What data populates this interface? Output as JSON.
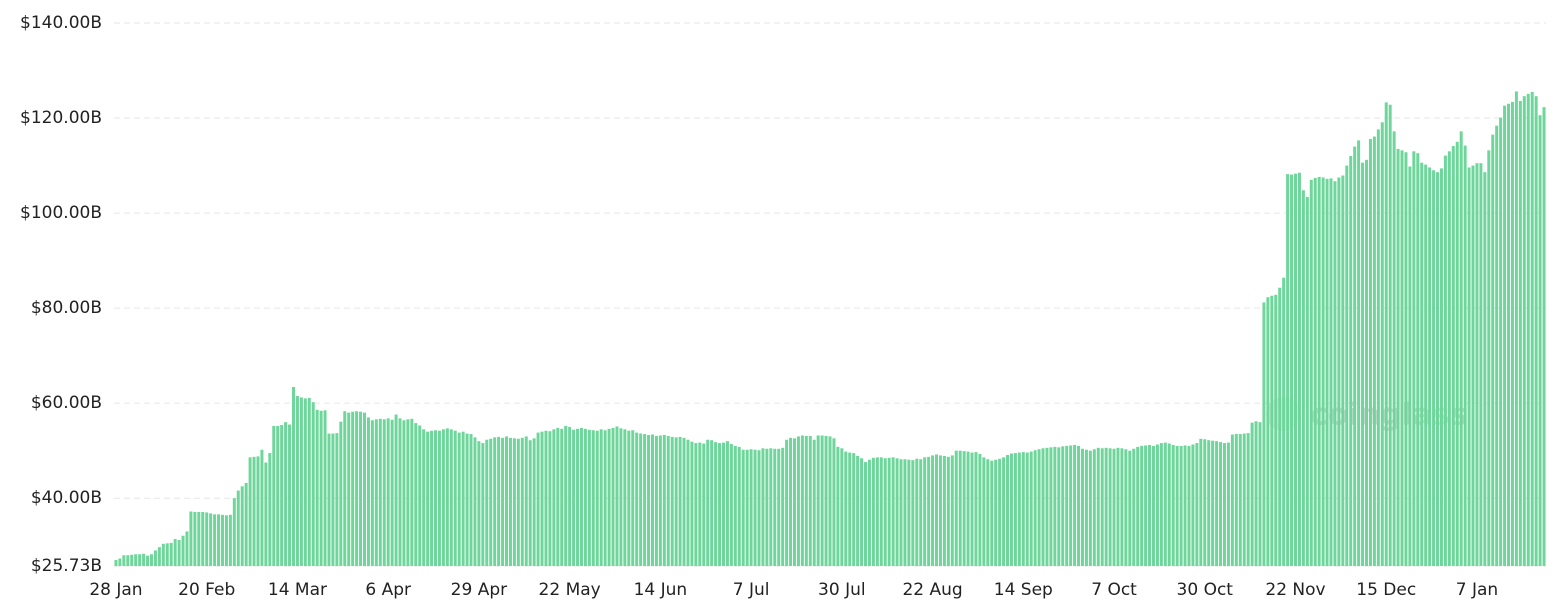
{
  "chart_data": {
    "type": "bar",
    "watermark": "coinglass",
    "color": "#6fd69b",
    "grid": true,
    "ylim": [
      25.73,
      140
    ],
    "yticks": [
      {
        "value": 25.73,
        "label": "$25.73B"
      },
      {
        "value": 40,
        "label": "$40.00B"
      },
      {
        "value": 60,
        "label": "$60.00B"
      },
      {
        "value": 80,
        "label": "$80.00B"
      },
      {
        "value": 100,
        "label": "$100.00B"
      },
      {
        "value": 120,
        "label": "$120.00B"
      },
      {
        "value": 140,
        "label": "$140.00B"
      }
    ],
    "categories": [
      "28 Jan",
      null,
      null,
      null,
      null,
      null,
      null,
      null,
      null,
      null,
      null,
      null,
      null,
      null,
      null,
      null,
      null,
      null,
      null,
      null,
      null,
      null,
      null,
      "20 Feb",
      null,
      null,
      null,
      null,
      null,
      null,
      null,
      null,
      null,
      null,
      null,
      null,
      null,
      null,
      null,
      null,
      null,
      null,
      null,
      null,
      null,
      null,
      "14 Mar",
      null,
      null,
      null,
      null,
      null,
      null,
      null,
      null,
      null,
      null,
      null,
      null,
      null,
      null,
      null,
      null,
      null,
      null,
      null,
      null,
      null,
      null,
      "6 Apr",
      null,
      null,
      null,
      null,
      null,
      null,
      null,
      null,
      null,
      null,
      null,
      null,
      null,
      null,
      null,
      null,
      null,
      null,
      null,
      null,
      null,
      null,
      "29 Apr",
      null,
      null,
      null,
      null,
      null,
      null,
      null,
      null,
      null,
      null,
      null,
      null,
      null,
      null,
      null,
      null,
      null,
      null,
      null,
      null,
      null,
      null,
      "22 May",
      null,
      null,
      null,
      null,
      null,
      null,
      null,
      null,
      null,
      null,
      null,
      null,
      null,
      null,
      null,
      null,
      null,
      null,
      null,
      null,
      null,
      null,
      "14 Jun",
      null,
      null,
      null,
      null,
      null,
      null,
      null,
      null,
      null,
      null,
      null,
      null,
      null,
      null,
      null,
      null,
      null,
      null,
      null,
      null,
      null,
      null,
      "7 Jul",
      null,
      null,
      null,
      null,
      null,
      null,
      null,
      null,
      null,
      null,
      null,
      null,
      null,
      null,
      null,
      null,
      null,
      null,
      null,
      null,
      null,
      null,
      "30 Jul",
      null,
      null,
      null,
      null,
      null,
      null,
      null,
      null,
      null,
      null,
      null,
      null,
      null,
      null,
      null,
      null,
      null,
      null,
      null,
      null,
      null,
      null,
      "22 Aug",
      null,
      null,
      null,
      null,
      null,
      null,
      null,
      null,
      null,
      null,
      null,
      null,
      null,
      null,
      null,
      null,
      null,
      null,
      null,
      null,
      null,
      null,
      "14 Sep",
      null,
      null,
      null,
      null,
      null,
      null,
      null,
      null,
      null,
      null,
      null,
      null,
      null,
      null,
      null,
      null,
      null,
      null,
      null,
      null,
      null,
      null,
      "7 Oct",
      null,
      null,
      null,
      null,
      null,
      null,
      null,
      null,
      null,
      null,
      null,
      null,
      null,
      null,
      null,
      null,
      null,
      null,
      null,
      null,
      null,
      null,
      "30 Oct",
      null,
      null,
      null,
      null,
      null,
      null,
      null,
      null,
      null,
      null,
      null,
      null,
      null,
      null,
      null,
      null,
      null,
      null,
      null,
      null,
      null,
      null,
      "22 Nov",
      null,
      null,
      null,
      null,
      null,
      null,
      null,
      null,
      null,
      null,
      null,
      null,
      null,
      null,
      null,
      null,
      null,
      null,
      null,
      null,
      null,
      null,
      "15 Dec",
      null,
      null,
      null,
      null,
      null,
      null,
      null,
      null,
      null,
      null,
      null,
      null,
      null,
      null,
      null,
      null,
      null,
      null,
      null,
      null,
      null,
      null,
      "7 Jan",
      null,
      null,
      null,
      null,
      null,
      null,
      null,
      null,
      null,
      null,
      null,
      null,
      null,
      null,
      null,
      null,
      null
    ],
    "values": [
      27,
      27.3,
      28,
      28,
      28.1,
      28.2,
      28.2,
      28.3,
      27.9,
      28.2,
      29,
      29.7,
      30.4,
      30.5,
      30.6,
      31.4,
      31.2,
      32.1,
      33,
      37.2,
      37.1,
      37.1,
      37.1,
      37,
      36.8,
      36.6,
      36.6,
      36.5,
      36.4,
      36.5,
      40,
      41.6,
      42.5,
      43.2,
      48.6,
      48.7,
      48.8,
      50.2,
      47.5,
      49.5,
      55.2,
      55.2,
      55.4,
      56,
      55.5,
      63.4,
      61.5,
      61.2,
      61,
      61.1,
      60.2,
      58.6,
      58.4,
      58.5,
      53.6,
      53.6,
      53.7,
      56.1,
      58.3,
      58,
      58.2,
      58.3,
      58.2,
      58,
      57,
      56.4,
      56.6,
      56.7,
      56.6,
      56.8,
      56.5,
      57.6,
      56.8,
      56.4,
      56.6,
      56.7,
      55.8,
      55.3,
      54.5,
      54,
      54.2,
      54.3,
      54.2,
      54.5,
      54.7,
      54.5,
      54.2,
      53.8,
      54,
      53.6,
      53.5,
      52.8,
      52,
      51.6,
      52.3,
      52.5,
      52.8,
      52.9,
      52.7,
      53,
      52.7,
      52.6,
      52.5,
      52.7,
      53,
      52.2,
      52.6,
      53.8,
      54,
      54.2,
      54.1,
      54.5,
      54.8,
      54.6,
      55.2,
      55,
      54.4,
      54.6,
      54.8,
      54.6,
      54.4,
      54.3,
      54.2,
      54.5,
      54.3,
      54.6,
      54.8,
      55.1,
      54.7,
      54.5,
      54.2,
      54.3,
      53.8,
      53.6,
      53.5,
      53.3,
      53.4,
      53.1,
      53.2,
      53.3,
      53.1,
      52.9,
      52.8,
      52.9,
      52.7,
      52.3,
      51.9,
      51.6,
      51.7,
      51.5,
      52.3,
      52.2,
      51.8,
      51.6,
      51.7,
      52,
      51.4,
      51,
      50.8,
      50.2,
      50.2,
      50.3,
      50.2,
      50.1,
      50.5,
      50.4,
      50.5,
      50.4,
      50.4,
      50.6,
      52.3,
      52.7,
      52.6,
      53,
      53.2,
      53.1,
      53.1,
      52.3,
      53.2,
      53.2,
      53.1,
      53,
      52.6,
      50.8,
      50.5,
      49.8,
      49.6,
      49.5,
      48.9,
      48.4,
      47.6,
      48.1,
      48.5,
      48.6,
      48.6,
      48.4,
      48.5,
      48.6,
      48.4,
      48.2,
      48.2,
      48.1,
      48,
      48.3,
      48.2,
      48.6,
      48.7,
      49,
      49.2,
      49,
      48.9,
      48.7,
      49,
      50,
      50,
      49.9,
      49.8,
      49.6,
      49.7,
      49.3,
      48.6,
      48.2,
      47.9,
      48.1,
      48.3,
      48.6,
      49.1,
      49.4,
      49.5,
      49.6,
      49.7,
      49.6,
      49.8,
      50.1,
      50.3,
      50.5,
      50.6,
      50.7,
      50.8,
      50.7,
      50.9,
      51,
      51.1,
      51.2,
      51,
      50.4,
      50.2,
      50,
      50.3,
      50.6,
      50.5,
      50.6,
      50.5,
      50.4,
      50.6,
      50.5,
      50.3,
      50,
      50.4,
      50.8,
      51,
      51.1,
      51.2,
      51,
      51.3,
      51.6,
      51.7,
      51.5,
      51.2,
      51,
      51,
      51.1,
      51,
      51.3,
      51.6,
      52.5,
      52.4,
      52.2,
      52.1,
      52,
      51.8,
      51.6,
      51.7,
      53.4,
      53.5,
      53.5,
      53.6,
      53.7,
      55.9,
      56.2,
      56,
      81.2,
      82.3,
      82.6,
      82.8,
      84.3,
      86.4,
      108.2,
      108.1,
      108.3,
      108.5,
      104.8,
      103.4,
      107,
      107.4,
      107.6,
      107.5,
      107.2,
      107.3,
      106.7,
      107.5,
      107.9,
      110,
      112,
      114,
      115.3,
      110.6,
      111.2,
      115.6,
      116.1,
      117.6,
      119.1,
      123.3,
      122.8,
      117.2,
      113.5,
      113.2,
      112.8,
      109.8,
      113,
      112.6,
      110.6,
      110.2,
      109.6,
      109,
      108.6,
      109.4,
      112.1,
      113,
      114.1,
      115,
      117.2,
      114.2,
      109.6,
      110,
      110.5,
      110.5,
      108.6,
      113.2,
      116.5,
      118.4,
      120.1,
      122.6,
      123,
      123.4,
      125.6,
      123.6,
      124.6,
      125.1,
      125.5,
      124.6,
      120.6,
      122.3
    ]
  }
}
